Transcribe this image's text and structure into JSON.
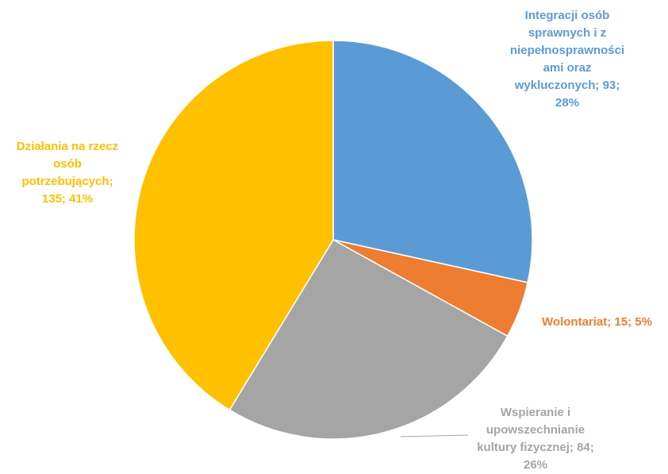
{
  "chart_data": {
    "type": "pie",
    "title": "",
    "start_angle_deg": 0,
    "direction": "clockwise",
    "slices": [
      {
        "category": "Integracji osób\nsprawnych i z\nniepełnosprawności\nami oraz\nwykluczonych",
        "value": 93,
        "percent_label": "28%",
        "label": "Integracji osób\nsprawnych i z\nniepełnosprawności\nami oraz\nwykluczonych; 93;\n28%",
        "color": "#5B9BD5"
      },
      {
        "category": "Wolontariat",
        "value": 15,
        "percent_label": "5%",
        "label": "Wolontariat; 15; 5%",
        "color": "#ED7D31"
      },
      {
        "category": "Wspieranie i\nupowszechnianie\nkultury fizycznej",
        "value": 84,
        "percent_label": "26%",
        "label": "Wspieranie i\nupowszechnianie\nkultury fizycznej; 84;\n26%",
        "color": "#A5A5A5"
      },
      {
        "category": "Działania na rzecz\nosób\npotrzebujących",
        "value": 135,
        "percent_label": "41%",
        "label": "Działania na rzecz\nosób\npotrzebujących;\n135; 41%",
        "color": "#FFC000"
      }
    ]
  }
}
